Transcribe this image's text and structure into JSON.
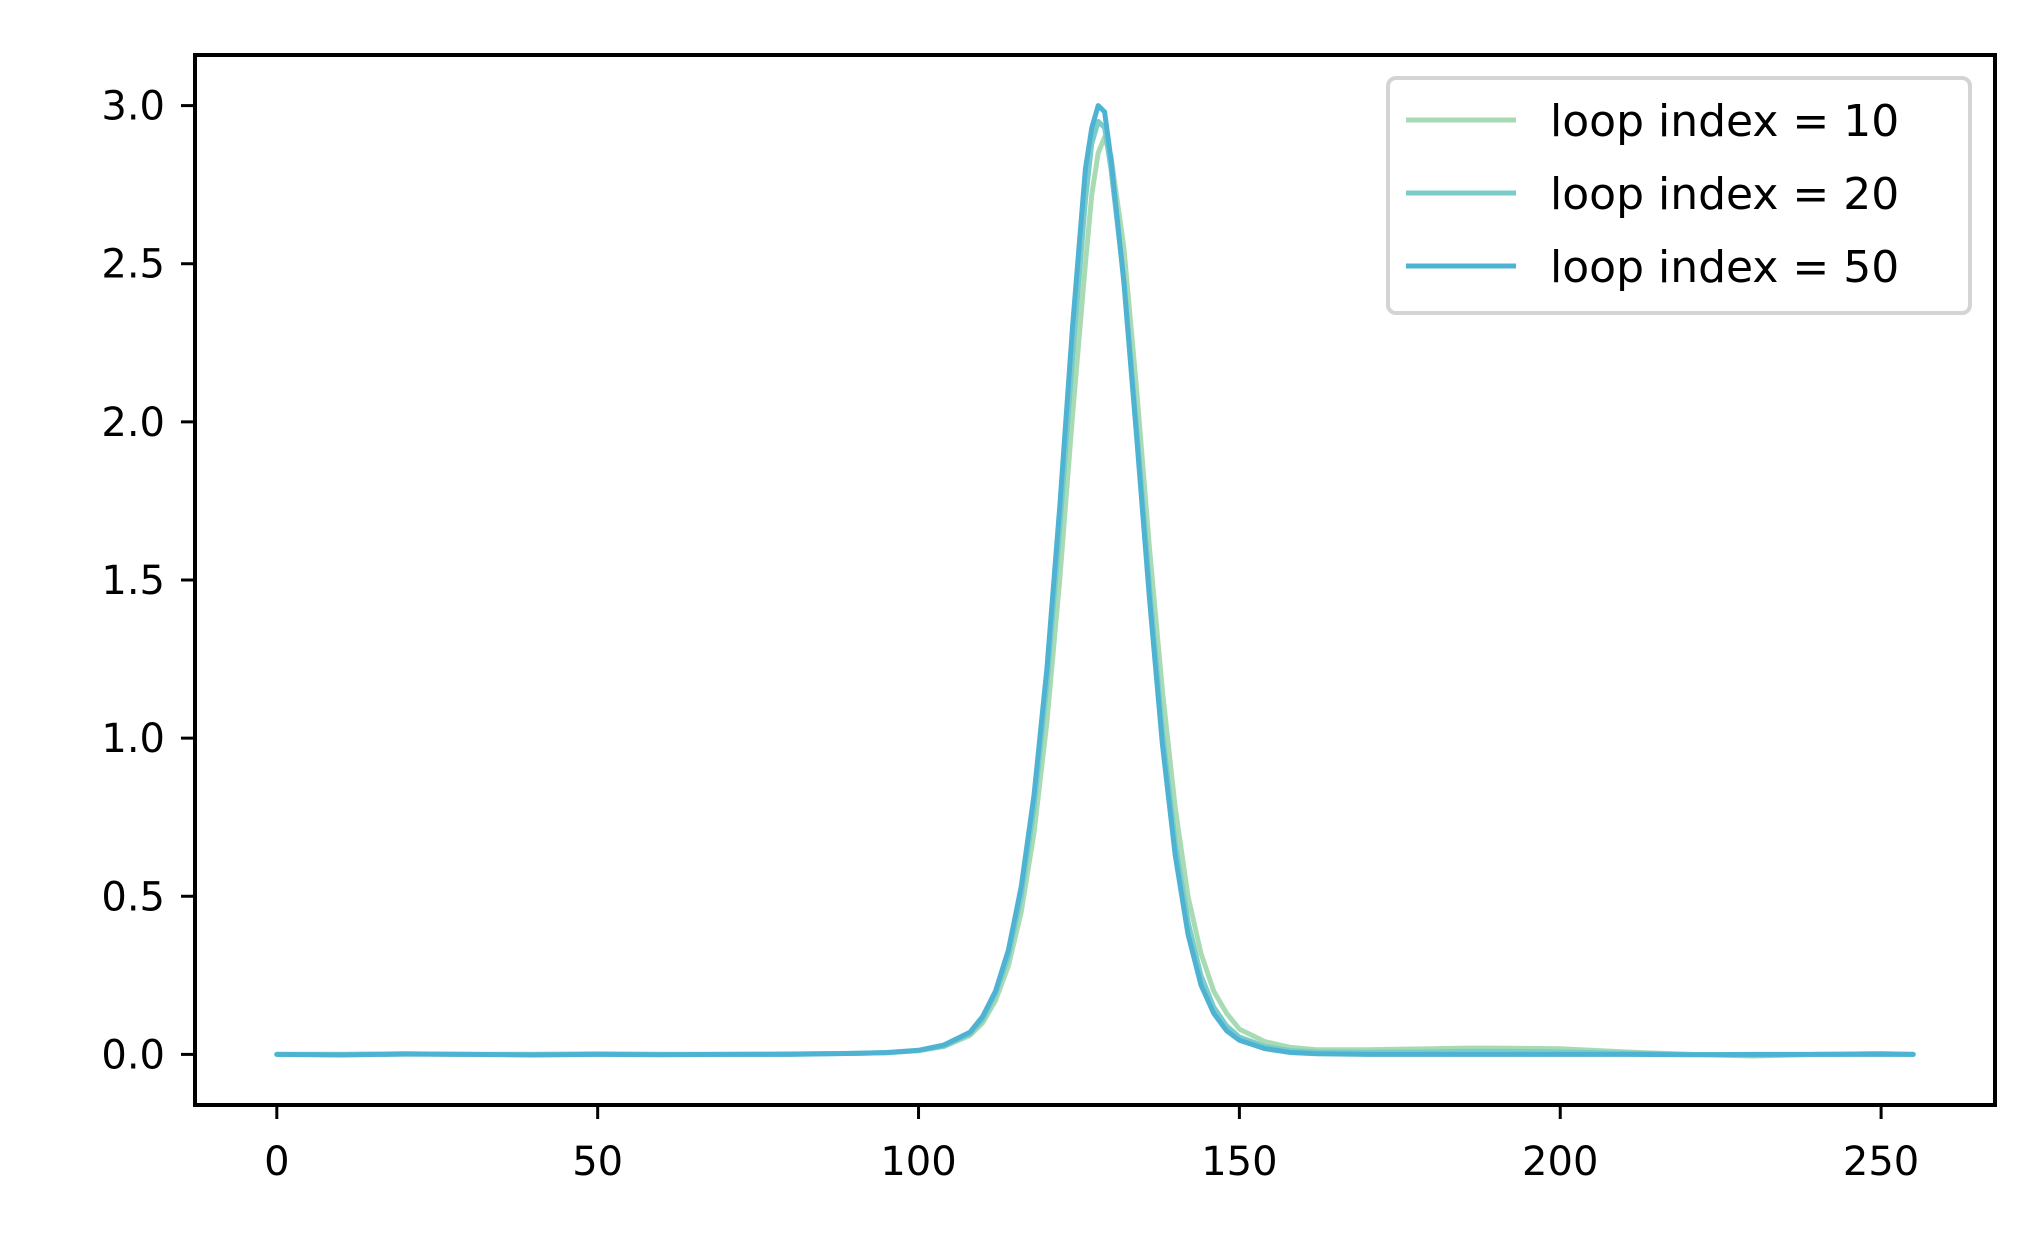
{
  "chart_data": {
    "type": "line",
    "title": "",
    "xlabel": "",
    "ylabel": "",
    "xlim": [
      -12.75,
      267.75
    ],
    "ylim": [
      -0.16,
      3.16
    ],
    "xticks": [
      0,
      50,
      100,
      150,
      200,
      250
    ],
    "yticks": [
      0.0,
      0.5,
      1.0,
      1.5,
      2.0,
      2.5,
      3.0
    ],
    "xtick_labels": [
      "0",
      "50",
      "100",
      "150",
      "200",
      "250"
    ],
    "ytick_labels": [
      "0.0",
      "0.5",
      "1.0",
      "1.5",
      "2.0",
      "2.5",
      "3.0"
    ],
    "grid": false,
    "legend_position": "top-right",
    "x": [
      0,
      10,
      20,
      30,
      40,
      50,
      60,
      70,
      80,
      90,
      95,
      100,
      104,
      108,
      110,
      112,
      114,
      116,
      118,
      120,
      122,
      124,
      126,
      127,
      128,
      129,
      130,
      132,
      134,
      136,
      138,
      140,
      142,
      144,
      146,
      148,
      150,
      154,
      158,
      162,
      170,
      180,
      185,
      190,
      200,
      210,
      220,
      230,
      240,
      250,
      255
    ],
    "series": [
      {
        "name": "loop index = 10",
        "color": "#a8dbb4",
        "values": [
          0.0,
          0.0,
          0.002,
          0.0,
          0.0,
          0.002,
          0.0,
          0.0,
          0.002,
          0.003,
          0.005,
          0.012,
          0.025,
          0.06,
          0.1,
          0.17,
          0.28,
          0.45,
          0.7,
          1.05,
          1.5,
          2.02,
          2.5,
          2.72,
          2.85,
          2.9,
          2.84,
          2.55,
          2.1,
          1.6,
          1.15,
          0.78,
          0.5,
          0.32,
          0.2,
          0.13,
          0.08,
          0.04,
          0.022,
          0.015,
          0.015,
          0.018,
          0.02,
          0.02,
          0.018,
          0.008,
          0.0,
          -0.005,
          0.0,
          0.003,
          0.0
        ]
      },
      {
        "name": "loop index = 20",
        "color": "#7accc8",
        "values": [
          0.0,
          0.0,
          0.002,
          0.0,
          0.0,
          0.001,
          0.0,
          0.0,
          0.001,
          0.003,
          0.005,
          0.012,
          0.027,
          0.065,
          0.11,
          0.19,
          0.31,
          0.5,
          0.78,
          1.17,
          1.66,
          2.2,
          2.7,
          2.88,
          2.95,
          2.93,
          2.8,
          2.45,
          1.98,
          1.48,
          1.02,
          0.67,
          0.42,
          0.25,
          0.15,
          0.09,
          0.055,
          0.025,
          0.012,
          0.008,
          0.007,
          0.008,
          0.01,
          0.01,
          0.008,
          0.004,
          0.0,
          -0.003,
          0.0,
          0.002,
          0.0
        ]
      },
      {
        "name": "loop index = 50",
        "color": "#4eb3d3",
        "values": [
          0.0,
          -0.002,
          0.001,
          0.0,
          -0.002,
          0.0,
          -0.001,
          0.0,
          0.0,
          0.003,
          0.006,
          0.013,
          0.03,
          0.07,
          0.12,
          0.2,
          0.33,
          0.53,
          0.82,
          1.22,
          1.73,
          2.3,
          2.8,
          2.93,
          3.0,
          2.98,
          2.83,
          2.44,
          1.95,
          1.44,
          0.98,
          0.63,
          0.38,
          0.22,
          0.13,
          0.075,
          0.045,
          0.018,
          0.006,
          0.002,
          0.0,
          0.0,
          0.0,
          0.0,
          0.0,
          0.0,
          -0.001,
          0.0,
          0.0,
          0.0,
          0.0
        ]
      }
    ]
  }
}
